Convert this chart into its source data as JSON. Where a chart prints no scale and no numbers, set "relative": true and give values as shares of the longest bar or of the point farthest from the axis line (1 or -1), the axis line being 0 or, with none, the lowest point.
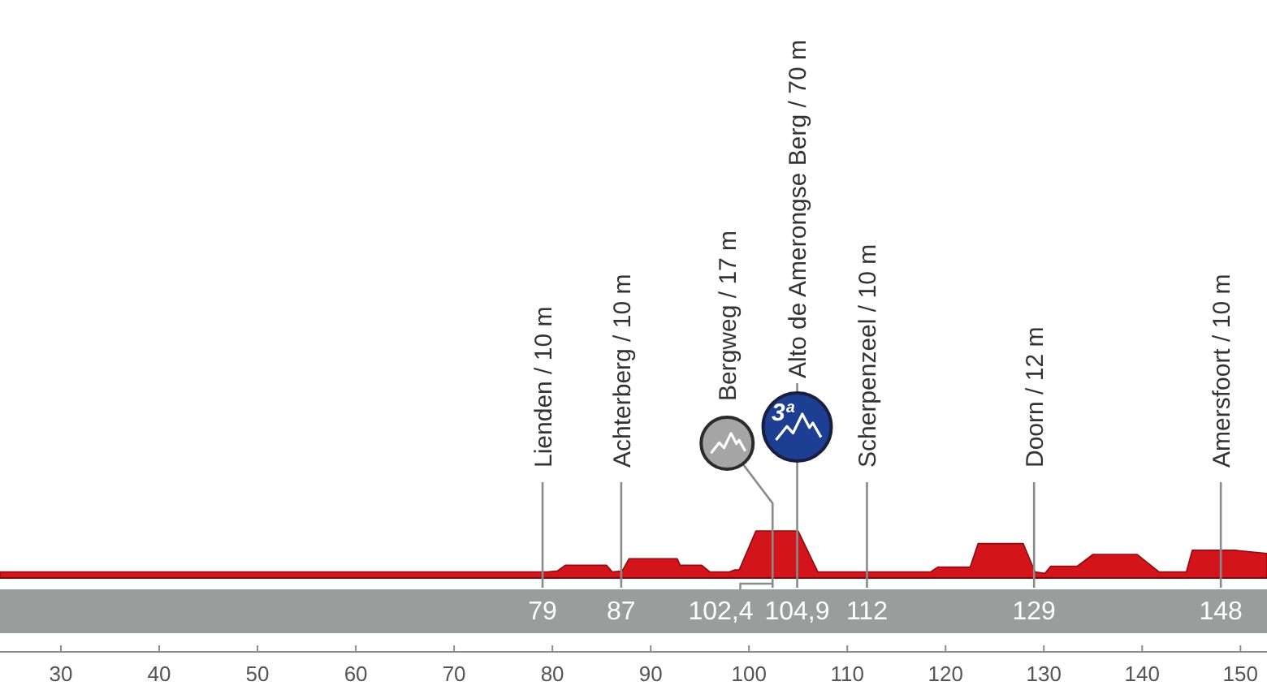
{
  "chart_data": {
    "type": "area",
    "relative": true,
    "color": "#d3141b",
    "x": [
      23.8,
      79.5,
      80.5,
      81.3,
      85.5,
      86.1,
      87.1,
      87.8,
      92.7,
      93.0,
      95.2,
      96.0,
      98.0,
      98.5,
      99.0,
      100.7,
      105.0,
      107.0,
      118.5,
      119.2,
      122.5,
      123.3,
      127.9,
      129.1,
      130.1,
      130.7,
      133.4,
      135.0,
      139.5,
      141.7,
      144.5,
      145.1,
      149.4,
      152.7
    ],
    "values": [
      0.13,
      0.13,
      0.15,
      0.27,
      0.27,
      0.13,
      0.15,
      0.41,
      0.41,
      0.27,
      0.27,
      0.13,
      0.13,
      0.17,
      0.17,
      1,
      1,
      0.13,
      0.13,
      0.23,
      0.23,
      0.73,
      0.73,
      0.13,
      0.1,
      0.25,
      0.25,
      0.5,
      0.5,
      0.13,
      0.13,
      0.59,
      0.59,
      0.52
    ],
    "xlim": [
      23.8,
      152.7
    ],
    "xticks": [
      30,
      40,
      50,
      60,
      70,
      80,
      90,
      100,
      110,
      120,
      130,
      140,
      150
    ],
    "ref_lines": [
      {
        "axis": "x",
        "value": 79,
        "label": "Lienden / 10 m"
      },
      {
        "axis": "x",
        "value": 87,
        "label": "Achterberg / 10 m"
      },
      {
        "axis": "x",
        "value": 102.4,
        "label": "Bergweg / 17 m"
      },
      {
        "axis": "x",
        "value": 104.9,
        "label": "Alto de Amerongse Berg / 70 m"
      },
      {
        "axis": "x",
        "value": 112,
        "label": "Scherpenzeel / 10 m"
      },
      {
        "axis": "x",
        "value": 129,
        "label": "Doorn / 12 m"
      },
      {
        "axis": "x",
        "value": 148,
        "label": "Amersfoort / 10 m"
      }
    ],
    "annotations": [
      "79",
      "87",
      "102,4",
      "104,9",
      "112",
      "129",
      "148",
      "3ª"
    ]
  }
}
